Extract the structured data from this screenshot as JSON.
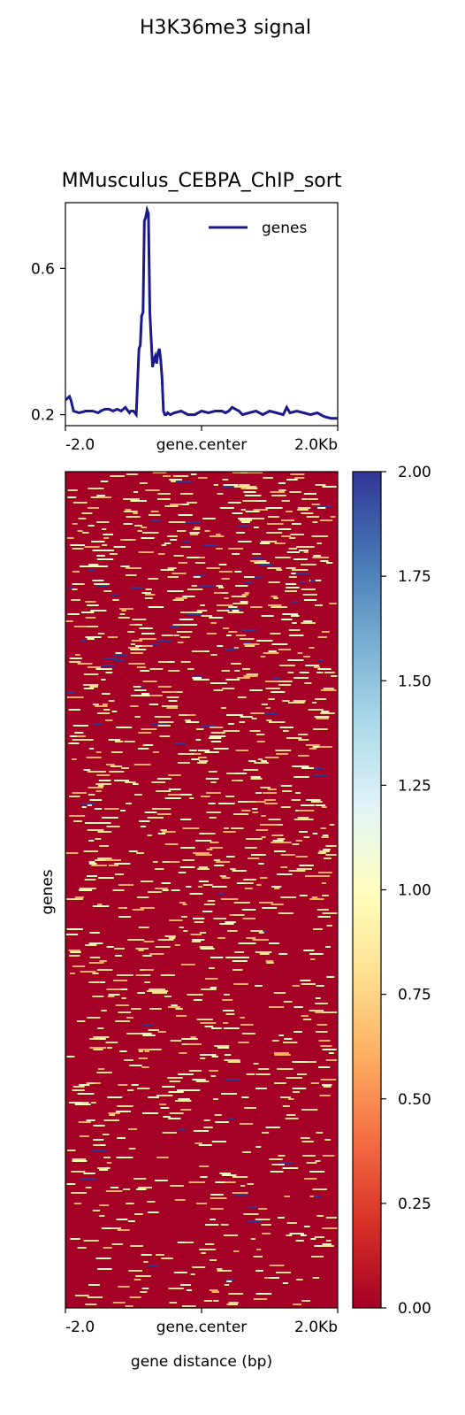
{
  "chart_data": [
    {
      "type": "line",
      "title": "H3K36me3 signal",
      "subtitle": "MMusculus_CEBPA_ChIP_sort",
      "xlabel": "",
      "ylabel": "",
      "x_ticks": [
        "-2.0",
        "gene.center",
        "2.0Kb"
      ],
      "y_ticks": [
        "0.2",
        "0.6"
      ],
      "xlim": [
        -2000,
        2000
      ],
      "ylim": [
        0.17,
        0.78
      ],
      "legend": {
        "position": "top-right",
        "entries": [
          "genes"
        ]
      },
      "series_color": "#1a1a8c",
      "series": [
        {
          "name": "genes",
          "x": [
            -2000,
            -1940,
            -1920,
            -1880,
            -1800,
            -1700,
            -1600,
            -1520,
            -1480,
            -1420,
            -1360,
            -1300,
            -1240,
            -1180,
            -1120,
            -1060,
            -1040,
            -1000,
            -960,
            -920,
            -900,
            -880,
            -860,
            -840,
            -820,
            -800,
            -780,
            -760,
            -720,
            -700,
            -680,
            -660,
            -640,
            -620,
            -600,
            -580,
            -560,
            -540,
            -520,
            -500,
            -460,
            -400,
            -300,
            -200,
            -100,
            0,
            100,
            200,
            300,
            350,
            400,
            450,
            500,
            550,
            600,
            700,
            800,
            900,
            1000,
            1100,
            1200,
            1250,
            1300,
            1400,
            1500,
            1600,
            1700,
            1800,
            1900,
            2000
          ],
          "values": [
            0.24,
            0.25,
            0.24,
            0.21,
            0.205,
            0.21,
            0.21,
            0.205,
            0.21,
            0.215,
            0.215,
            0.21,
            0.215,
            0.21,
            0.22,
            0.205,
            0.21,
            0.21,
            0.2,
            0.38,
            0.39,
            0.47,
            0.48,
            0.73,
            0.74,
            0.76,
            0.75,
            0.48,
            0.33,
            0.35,
            0.36,
            0.34,
            0.37,
            0.38,
            0.35,
            0.3,
            0.21,
            0.2,
            0.2,
            0.205,
            0.2,
            0.205,
            0.21,
            0.2,
            0.2,
            0.21,
            0.205,
            0.21,
            0.21,
            0.205,
            0.21,
            0.22,
            0.215,
            0.21,
            0.2,
            0.205,
            0.21,
            0.2,
            0.21,
            0.205,
            0.2,
            0.22,
            0.205,
            0.21,
            0.205,
            0.2,
            0.205,
            0.195,
            0.19,
            0.19
          ]
        }
      ]
    },
    {
      "type": "heatmap",
      "xlabel": "gene distance (bp)",
      "ylabel": "genes",
      "x_ticks": [
        "-2.0",
        "gene.center",
        "2.0Kb"
      ],
      "colormap": "RdYlBu",
      "color_range": [
        0.0,
        2.0
      ],
      "colorbar_ticks": [
        "0.00",
        "0.25",
        "0.50",
        "0.75",
        "1.00",
        "1.25",
        "1.50",
        "1.75",
        "2.00"
      ],
      "colorbar_stops": [
        "#a50026",
        "#d73027",
        "#f46d43",
        "#fdae61",
        "#fee090",
        "#ffffbf",
        "#e0f3f8",
        "#abd9e9",
        "#74add1",
        "#4575b4",
        "#313695"
      ],
      "background_value": 0.0,
      "density_profile": [
        0.22,
        0.18,
        0.12,
        0.08
      ]
    }
  ]
}
